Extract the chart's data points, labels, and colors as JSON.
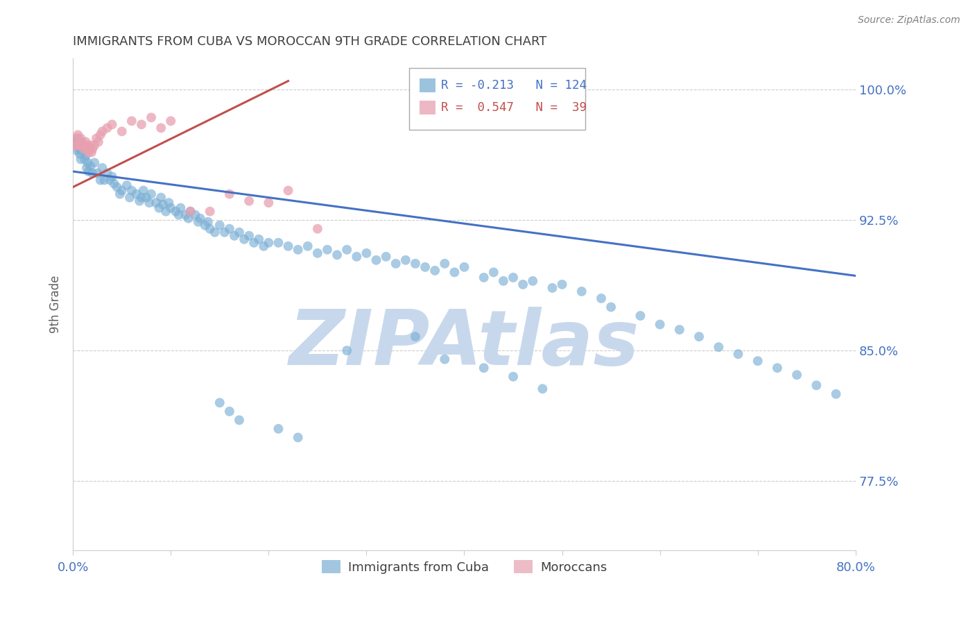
{
  "title": "IMMIGRANTS FROM CUBA VS MOROCCAN 9TH GRADE CORRELATION CHART",
  "source": "Source: ZipAtlas.com",
  "ylabel": "9th Grade",
  "ytick_labels": [
    "100.0%",
    "92.5%",
    "85.0%",
    "77.5%"
  ],
  "ytick_values": [
    1.0,
    0.925,
    0.85,
    0.775
  ],
  "ymin": 0.735,
  "ymax": 1.018,
  "xmin": 0.0,
  "xmax": 0.8,
  "blue_color": "#7BAFD4",
  "pink_color": "#E8A0B0",
  "blue_line_color": "#4472C4",
  "pink_line_color": "#C0504D",
  "title_color": "#404040",
  "axis_label_color": "#4472C4",
  "watermark_color": "#C8D8EC",
  "background_color": "#FFFFFF",
  "blue_line_x": [
    0.0,
    0.8
  ],
  "blue_line_y": [
    0.953,
    0.893
  ],
  "pink_line_x": [
    0.0,
    0.22
  ],
  "pink_line_y": [
    0.944,
    1.005
  ],
  "blue_scatter_x": [
    0.002,
    0.003,
    0.004,
    0.005,
    0.006,
    0.007,
    0.008,
    0.009,
    0.01,
    0.012,
    0.013,
    0.014,
    0.015,
    0.016,
    0.018,
    0.02,
    0.022,
    0.025,
    0.028,
    0.03,
    0.032,
    0.035,
    0.038,
    0.04,
    0.042,
    0.045,
    0.048,
    0.05,
    0.055,
    0.058,
    0.06,
    0.065,
    0.068,
    0.07,
    0.072,
    0.075,
    0.078,
    0.08,
    0.085,
    0.088,
    0.09,
    0.092,
    0.095,
    0.098,
    0.1,
    0.105,
    0.108,
    0.11,
    0.115,
    0.118,
    0.12,
    0.125,
    0.128,
    0.13,
    0.135,
    0.138,
    0.14,
    0.145,
    0.15,
    0.155,
    0.16,
    0.165,
    0.17,
    0.175,
    0.18,
    0.185,
    0.19,
    0.195,
    0.2,
    0.21,
    0.22,
    0.23,
    0.24,
    0.25,
    0.26,
    0.27,
    0.28,
    0.29,
    0.3,
    0.31,
    0.32,
    0.33,
    0.34,
    0.35,
    0.36,
    0.37,
    0.38,
    0.39,
    0.4,
    0.42,
    0.43,
    0.44,
    0.45,
    0.46,
    0.47,
    0.49,
    0.5,
    0.52,
    0.54,
    0.55,
    0.58,
    0.6,
    0.62,
    0.64,
    0.66,
    0.68,
    0.7,
    0.72,
    0.74,
    0.76,
    0.78,
    0.35,
    0.38,
    0.28,
    0.42,
    0.45,
    0.48,
    0.15,
    0.16,
    0.17,
    0.21,
    0.23
  ],
  "blue_scatter_y": [
    0.97,
    0.968,
    0.965,
    0.972,
    0.966,
    0.963,
    0.96,
    0.968,
    0.965,
    0.96,
    0.962,
    0.955,
    0.958,
    0.953,
    0.956,
    0.952,
    0.958,
    0.952,
    0.948,
    0.955,
    0.948,
    0.952,
    0.948,
    0.95,
    0.946,
    0.944,
    0.94,
    0.942,
    0.945,
    0.938,
    0.942,
    0.94,
    0.936,
    0.938,
    0.942,
    0.938,
    0.935,
    0.94,
    0.935,
    0.932,
    0.938,
    0.934,
    0.93,
    0.935,
    0.932,
    0.93,
    0.928,
    0.932,
    0.928,
    0.926,
    0.93,
    0.928,
    0.924,
    0.926,
    0.922,
    0.924,
    0.92,
    0.918,
    0.922,
    0.918,
    0.92,
    0.916,
    0.918,
    0.914,
    0.916,
    0.912,
    0.914,
    0.91,
    0.912,
    0.912,
    0.91,
    0.908,
    0.91,
    0.906,
    0.908,
    0.905,
    0.908,
    0.904,
    0.906,
    0.902,
    0.904,
    0.9,
    0.902,
    0.9,
    0.898,
    0.896,
    0.9,
    0.895,
    0.898,
    0.892,
    0.895,
    0.89,
    0.892,
    0.888,
    0.89,
    0.886,
    0.888,
    0.884,
    0.88,
    0.875,
    0.87,
    0.865,
    0.862,
    0.858,
    0.852,
    0.848,
    0.844,
    0.84,
    0.836,
    0.83,
    0.825,
    0.858,
    0.845,
    0.85,
    0.84,
    0.835,
    0.828,
    0.82,
    0.815,
    0.81,
    0.805,
    0.8
  ],
  "pink_scatter_x": [
    0.002,
    0.003,
    0.004,
    0.005,
    0.006,
    0.007,
    0.008,
    0.009,
    0.01,
    0.011,
    0.012,
    0.013,
    0.014,
    0.015,
    0.016,
    0.017,
    0.018,
    0.019,
    0.02,
    0.022,
    0.024,
    0.026,
    0.028,
    0.03,
    0.035,
    0.04,
    0.05,
    0.06,
    0.07,
    0.08,
    0.09,
    0.1,
    0.12,
    0.14,
    0.16,
    0.18,
    0.2,
    0.22,
    0.25
  ],
  "pink_scatter_y": [
    0.968,
    0.972,
    0.968,
    0.974,
    0.97,
    0.968,
    0.972,
    0.97,
    0.968,
    0.966,
    0.968,
    0.97,
    0.966,
    0.968,
    0.964,
    0.966,
    0.968,
    0.964,
    0.966,
    0.968,
    0.972,
    0.97,
    0.974,
    0.976,
    0.978,
    0.98,
    0.976,
    0.982,
    0.98,
    0.984,
    0.978,
    0.982,
    0.93,
    0.93,
    0.94,
    0.936,
    0.935,
    0.942,
    0.92
  ]
}
